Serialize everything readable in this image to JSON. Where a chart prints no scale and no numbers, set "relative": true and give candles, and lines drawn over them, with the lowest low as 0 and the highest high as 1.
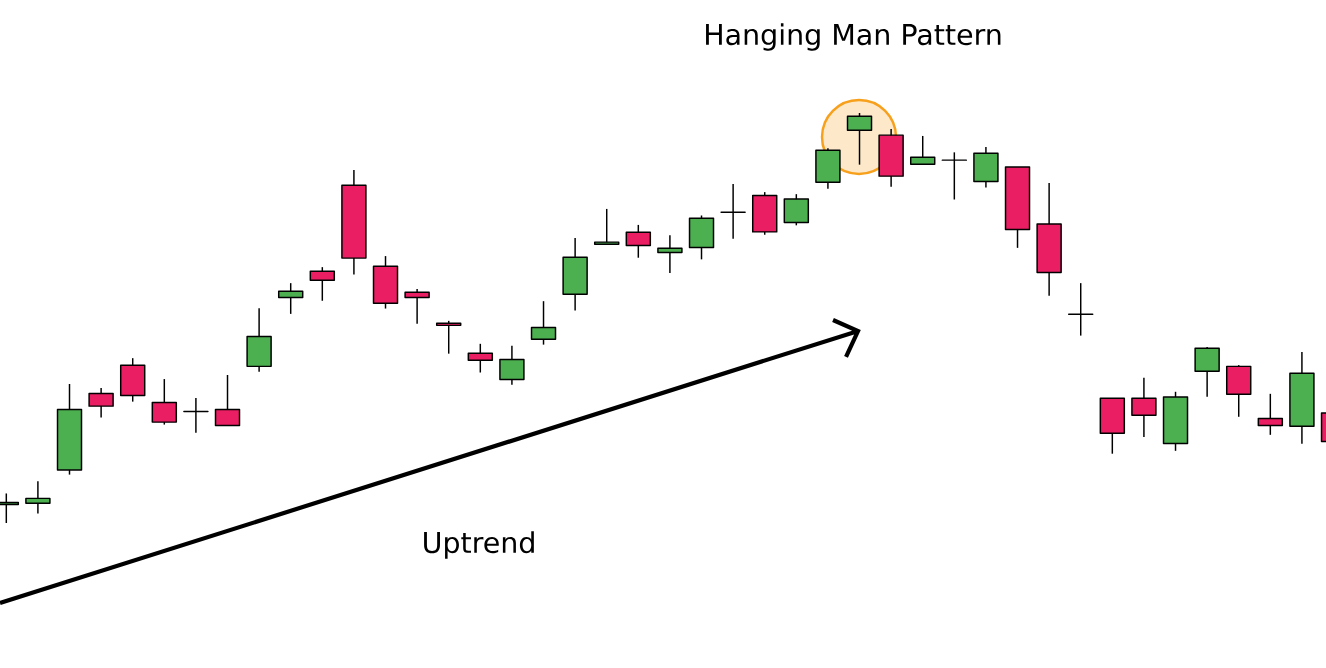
{
  "chart_data": {
    "type": "candlestick",
    "relative": true,
    "categories": [
      null,
      null,
      null,
      null,
      null,
      null,
      null,
      null,
      null,
      null,
      null,
      null,
      null,
      null,
      null,
      null,
      null,
      null,
      null,
      null,
      null,
      null,
      null,
      null,
      null,
      null,
      null,
      null,
      null,
      null,
      null,
      null,
      null,
      null,
      null,
      null,
      null,
      null,
      null,
      null,
      null,
      null,
      null
    ],
    "ohlc": [
      [
        0.045,
        0.072,
        0.0,
        0.05
      ],
      [
        0.048,
        0.102,
        0.023,
        0.06
      ],
      [
        0.129,
        0.339,
        0.118,
        0.277
      ],
      [
        0.316,
        0.329,
        0.257,
        0.285
      ],
      [
        0.385,
        0.402,
        0.296,
        0.311
      ],
      [
        0.294,
        0.351,
        0.24,
        0.246
      ],
      [
        0.272,
        0.305,
        0.22,
        0.272
      ],
      [
        0.277,
        0.361,
        0.238,
        0.238
      ],
      [
        0.382,
        0.524,
        0.369,
        0.455
      ],
      [
        0.55,
        0.585,
        0.51,
        0.565
      ],
      [
        0.614,
        0.624,
        0.542,
        0.592
      ],
      [
        0.824,
        0.861,
        0.606,
        0.646
      ],
      [
        0.626,
        0.651,
        0.523,
        0.536
      ],
      [
        0.563,
        0.571,
        0.486,
        0.55
      ],
      [
        0.487,
        0.493,
        0.413,
        0.482
      ],
      [
        0.414,
        0.437,
        0.367,
        0.397
      ],
      [
        0.35,
        0.432,
        0.337,
        0.399
      ],
      [
        0.448,
        0.541,
        0.435,
        0.477
      ],
      [
        0.558,
        0.695,
        0.518,
        0.648
      ],
      [
        0.68,
        0.766,
        0.68,
        0.685
      ],
      [
        0.709,
        0.727,
        0.647,
        0.677
      ],
      [
        0.66,
        0.702,
        0.61,
        0.67
      ],
      [
        0.672,
        0.75,
        0.643,
        0.743
      ],
      [
        0.758,
        0.827,
        0.693,
        0.758
      ],
      [
        0.799,
        0.807,
        0.703,
        0.71
      ],
      [
        0.733,
        0.802,
        0.726,
        0.79
      ],
      [
        0.831,
        0.914,
        0.815,
        0.909
      ],
      [
        0.958,
        1.0,
        0.874,
        0.992
      ],
      [
        0.946,
        0.961,
        0.82,
        0.846
      ],
      [
        0.875,
        0.944,
        0.875,
        0.892
      ],
      [
        0.885,
        0.904,
        0.789,
        0.885
      ],
      [
        0.833,
        0.917,
        0.818,
        0.902
      ],
      [
        0.868,
        0.868,
        0.671,
        0.716
      ],
      [
        0.729,
        0.829,
        0.554,
        0.611
      ],
      [
        0.509,
        0.585,
        0.457,
        0.509
      ],
      [
        0.304,
        0.304,
        0.169,
        0.219
      ],
      [
        0.304,
        0.354,
        0.21,
        0.263
      ],
      [
        0.194,
        0.32,
        0.176,
        0.307
      ],
      [
        0.37,
        0.429,
        0.308,
        0.426
      ],
      [
        0.382,
        0.385,
        0.259,
        0.314
      ],
      [
        0.255,
        0.315,
        0.215,
        0.238
      ],
      [
        0.236,
        0.417,
        0.193,
        0.365
      ],
      [
        0.268,
        0.268,
        0.199,
        0.199
      ]
    ],
    "colors": [
      "#4caf50",
      "#4caf50",
      "#4caf50",
      "#e91e63",
      "#e91e63",
      "#e91e63",
      "#000000",
      "#e91e63",
      "#4caf50",
      "#4caf50",
      "#e91e63",
      "#e91e63",
      "#e91e63",
      "#e91e63",
      "#e91e63",
      "#e91e63",
      "#4caf50",
      "#4caf50",
      "#4caf50",
      "#4caf50",
      "#e91e63",
      "#4caf50",
      "#4caf50",
      "#000000",
      "#e91e63",
      "#4caf50",
      "#4caf50",
      "#4caf50",
      "#e91e63",
      "#4caf50",
      "#000000",
      "#4caf50",
      "#e91e63",
      "#e91e63",
      "#000000",
      "#e91e63",
      "#e91e63",
      "#4caf50",
      "#4caf50",
      "#e91e63",
      "#e91e63",
      "#4caf50",
      "#e91e63"
    ],
    "annotations": [
      "Hanging Man Pattern",
      "Uptrend"
    ]
  }
}
